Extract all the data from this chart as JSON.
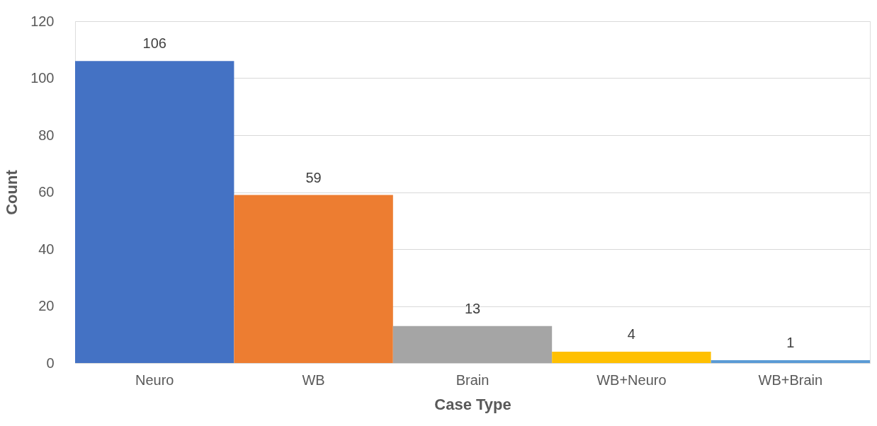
{
  "chart_data": {
    "type": "bar",
    "xlabel": "Case Type",
    "ylabel": "Count",
    "categories": [
      "Neuro",
      "WB",
      "Brain",
      "WB+Neuro",
      "WB+Brain"
    ],
    "values": [
      106,
      59,
      13,
      4,
      1
    ],
    "colors": [
      "#4472c4",
      "#ed7d31",
      "#a5a5a5",
      "#ffc000",
      "#5b9bd5"
    ],
    "ylim": [
      0,
      120
    ],
    "yticks": [
      0,
      20,
      40,
      60,
      80,
      100,
      120
    ],
    "grid": "y",
    "data_labels": true
  }
}
